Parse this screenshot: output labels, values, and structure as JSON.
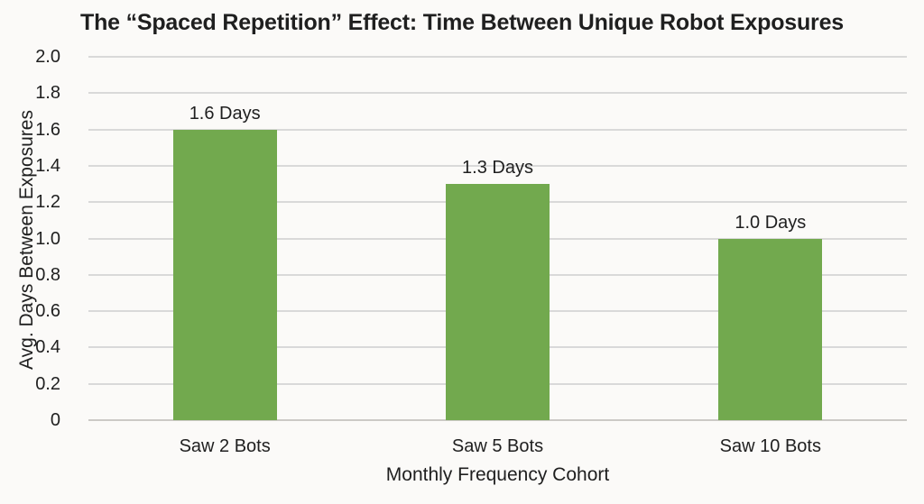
{
  "chart_data": {
    "type": "bar",
    "title": "The “Spaced Repetition” Effect: Time Between Unique Robot Exposures",
    "categories": [
      "Saw 2 Bots",
      "Saw 5 Bots",
      "Saw 10 Bots"
    ],
    "values": [
      1.6,
      1.3,
      1.0
    ],
    "data_labels": [
      "1.6 Days",
      "1.3 Days",
      "1.0 Days"
    ],
    "xlabel": "Monthly Frequency Cohort",
    "ylabel": "Avg. Days Between Exposures",
    "ylim": [
      0,
      2.0
    ],
    "ytick_values": [
      2.0,
      1.8,
      1.6,
      1.4,
      1.2,
      1.0,
      0.8,
      0.6,
      0.4,
      0.2,
      0
    ],
    "ytick_labels": [
      "2.0",
      "1.8",
      "1.6",
      "1.4",
      "1.2",
      "1.0",
      "0.8",
      "0.6",
      "0.4",
      "0.2",
      "0"
    ],
    "grid": "horizontal-on",
    "legend": "none",
    "colors": {
      "bar": "#72A94E",
      "gridline": "#D9D9D9",
      "axis_line": "#CCCAC6",
      "text": "#1F1F1F",
      "background": "#FBFAF8"
    }
  }
}
